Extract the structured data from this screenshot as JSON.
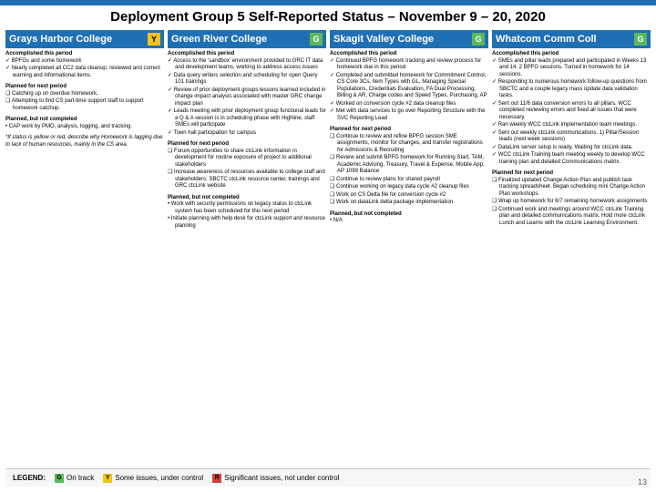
{
  "title": "Deployment Group 5 Self-Reported Status – November 9 – 20, 2020",
  "page_number": "13",
  "legend": {
    "label": "LEGEND:",
    "items": [
      {
        "code": "G",
        "text": "On track",
        "cls": "st-g"
      },
      {
        "code": "Y",
        "text": "Some issues, under control",
        "cls": "st-y"
      },
      {
        "code": "R",
        "text": "Significant issues, not under control",
        "cls": "st-r"
      }
    ]
  },
  "colors": {
    "blue": "#1f6fb5",
    "yellow": "#f0c419",
    "green": "#5cb85c",
    "red": "#d43f3a"
  },
  "columns": [
    {
      "name": "Grays Harbor College",
      "status": "Y",
      "status_cls": "st-y",
      "sections": [
        {
          "heading": "Accomplished this period",
          "type": "chk",
          "items": [
            "BPFGs and some homework",
            "Nearly completed all CC2 data cleanup; reviewed and correct warning and informational items."
          ]
        },
        {
          "heading": "Planned for next period",
          "type": "box",
          "items": [
            "Catching up on overdue homework.",
            "Attempting to find CS part-time support staff to support homework catchup."
          ]
        },
        {
          "heading": "Planned, but not completed",
          "type": "dot",
          "items": [
            "CAP work by PMO, analysis, logging, and tracking."
          ]
        },
        {
          "heading": "",
          "type": "note",
          "items": [
            "*If status is yellow or red, describe why Homework is lagging due to lack of human resources, mainly in the CS area."
          ]
        }
      ]
    },
    {
      "name": "Green River College",
      "status": "G",
      "status_cls": "st-g",
      "sections": [
        {
          "heading": "Accomplished this period",
          "type": "chk",
          "items": [
            "Access to the 'sandbox' environment provided to GRC IT data and development teams, working to address access issues",
            "Data query writers selection and scheduling for open Query 101 trainings",
            "Review of prior deployment groups lessons learned included in change impact analysis associated with master GRC change impact plan",
            "Leads meeting with prior deployment group functional leads for a Q & A session is in scheduling phase with Highline, staff SMEs will participate",
            "Town hall participation for campus"
          ]
        },
        {
          "heading": "Planned for next period",
          "type": "box",
          "items": [
            "Forum opportunities to share ctcLink information in development for routine exposure of project to additional stakeholders",
            "Increase awareness of resources available to college staff and stakeholders; SBCTC ctcLink resource center, trainings and GRC ctcLink website"
          ]
        },
        {
          "heading": "Planned, but not completed",
          "type": "dot",
          "items": [
            "Work with security permissions on legacy status to ctcLink system has been scheduled for this next period",
            "Initiate planning with help desk for ctcLink support and resource planning"
          ]
        }
      ]
    },
    {
      "name": "Skagit Valley College",
      "status": "G",
      "status_cls": "st-g",
      "sections": [
        {
          "heading": "Accomplished this period",
          "type": "chk",
          "items": [
            "Continued BPFG homework tracking and review process for homework due in this period",
            "Completed and submitted homework for Commitment Control, CS Core 3Cs, Item Types with GL, Managing Special Populations, Credentials Evaluation, FA Dual Processing, Billing & AR, Charge codes and Speed Types, Purchasing, AP",
            "Worked on conversion cycle #2 data cleanup files",
            "Met with data services to go over Reporting Structure with the SVC Reporting Lead"
          ]
        },
        {
          "heading": "Planned for next period",
          "type": "box",
          "items": [
            "Continue to review and refine BPFG session SME assignments, monitor for changes, and transfer registrations for Admissions & Recruiting",
            "Review and submit BPFG homework for Running Start, TAM, Academic Advising, Treasury, Travel & Expense, Mobile App, AP 1099 Balance",
            "Continue to review plans for shared payroll",
            "Continue working on legacy data cycle #2 cleanup files",
            "Work on CS Delta file for conversion cycle #2",
            "Work on dataLink delta package implementation"
          ]
        },
        {
          "heading": "Planned, but not completed",
          "type": "dot",
          "items": [
            "N/A"
          ]
        }
      ]
    },
    {
      "name": "Whatcom Comm Coll",
      "status": "G",
      "status_cls": "st-g",
      "sections": [
        {
          "heading": "Accomplished this period",
          "type": "chk",
          "items": [
            "SMEs and pillar leads prepared and participated in Weeks 13 and 14. 2 BPFG sessions. Turned in homework for 14 sessions.",
            "Responding to numerous homework follow-up questions from SBCTC and a couple legacy mass update data validation tasks.",
            "Sent out 11/6 data conversion errors to all pillars. WCC completed reviewing errors and fixed all issues that were necessary.",
            "Ran weekly WCC ctcLink implementation team meetings.",
            "Sent out weekly ctcLink communications. 1) Pillar/Session leads (next week sessions)",
            "DataLink server setup is ready. Waiting for ctcLink data.",
            "WCC ctcLink Training team meeting weekly to develop WCC training plan and detailed Communications matrix."
          ]
        },
        {
          "heading": "Planned for next period",
          "type": "box",
          "items": [
            "Finalized updated Change Action Plan and publish task tracking spreadsheet. Began scheduling mini Change Action Plan workshops.",
            "Wrap up homework for 6/7 remaining homework assignments",
            "Continued work and meetings around WCC ctcLink Training plan and detailed communications matrix. Hold more ctcLink Lunch and Learns with the ctcLink Learning Environment."
          ]
        }
      ]
    }
  ]
}
